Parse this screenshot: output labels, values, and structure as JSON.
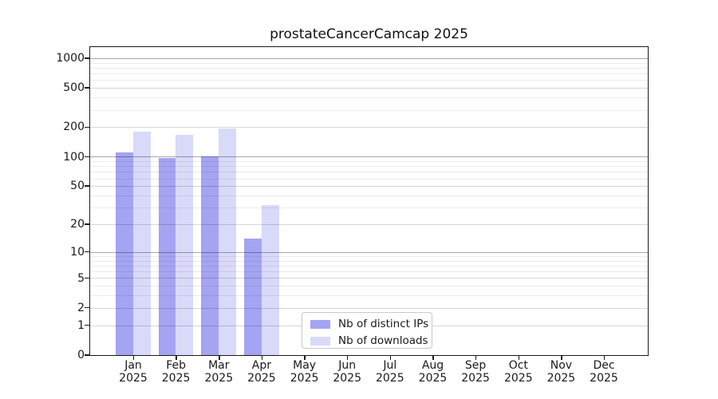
{
  "chart_data": {
    "type": "bar",
    "title": "prostateCancerCamcap 2025",
    "categories": [
      "Jan",
      "Feb",
      "Mar",
      "Apr",
      "May",
      "Jun",
      "Jul",
      "Aug",
      "Sep",
      "Oct",
      "Nov",
      "Dec"
    ],
    "year": "2025",
    "series": [
      {
        "name": "Nb of distinct IPs",
        "color": "#a4a4f2",
        "values": [
          110,
          97,
          100,
          14,
          0,
          0,
          0,
          0,
          0,
          0,
          0,
          0
        ]
      },
      {
        "name": "Nb of downloads",
        "color": "#d9d9f9",
        "values": [
          178,
          168,
          195,
          32,
          0,
          0,
          0,
          0,
          0,
          0,
          0,
          0
        ]
      }
    ],
    "y_scale": "log10(1+value)",
    "y_ticks": [
      1000,
      500,
      200,
      100,
      50,
      20,
      10,
      5,
      2,
      1,
      0
    ],
    "ylim": [
      0,
      1100
    ],
    "grid": "horizontal, minor log lines, majors at 10/100/1000",
    "legend_position": "inside bottom-center",
    "colors": {
      "grid_minor": "#ececec",
      "grid_mid": "#d6d6d6",
      "grid_major": "#a8a8a8",
      "axis": "#1a1a1a",
      "background": "#ffffff"
    }
  }
}
